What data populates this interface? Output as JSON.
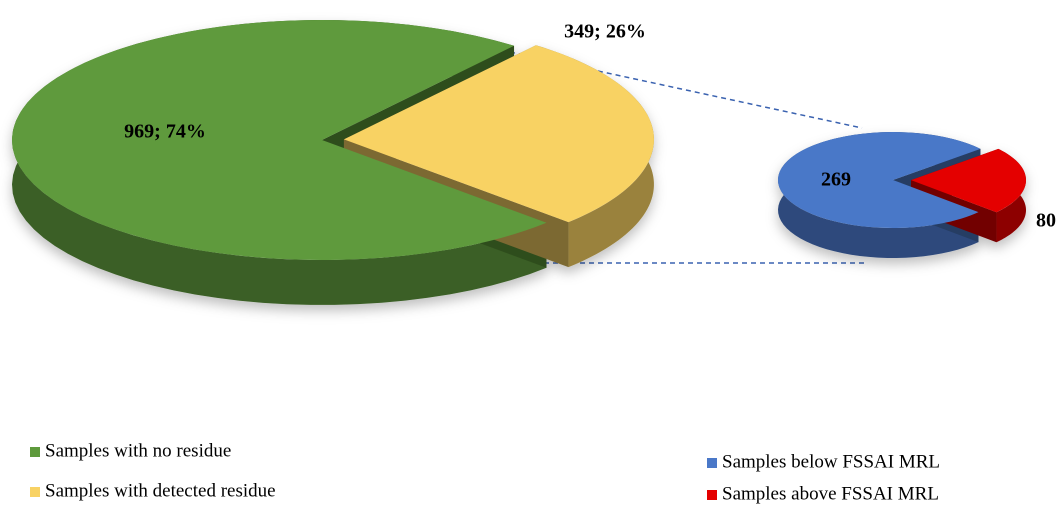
{
  "chart_data": [
    {
      "type": "pie",
      "categories": [
        "Samples with no residue",
        "Samples with detected residue"
      ],
      "values": [
        969,
        349
      ],
      "value_labels": [
        "969; 74%",
        "349; 26%"
      ],
      "colors": [
        "#5e9a3c",
        "#f8d264"
      ]
    },
    {
      "type": "pie",
      "categories": [
        "Samples below FSSAI MRL",
        "Samples above FSSAI MRL"
      ],
      "values": [
        269,
        80
      ],
      "colors": [
        "#4a78c8",
        "#e40000"
      ]
    }
  ]
}
